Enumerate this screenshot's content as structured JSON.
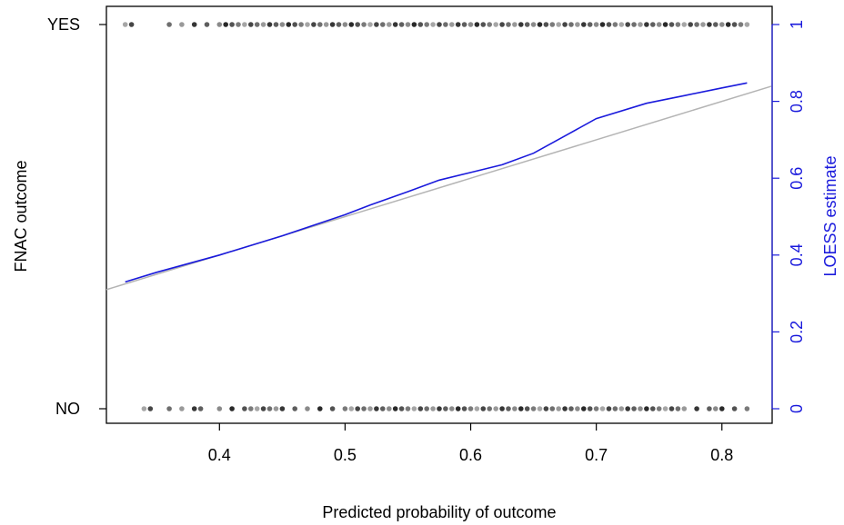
{
  "chart_data": {
    "type": "scatter",
    "xlabel": "Predicted probability of outcome",
    "ylabel": "FNAC outcome",
    "y2label": "LOESS estimate",
    "xlim": [
      0.31,
      0.84
    ],
    "x_ticks": [
      0.4,
      0.5,
      0.6,
      0.7,
      0.8
    ],
    "x_tick_labels": [
      "0.4",
      "0.5",
      "0.6",
      "0.7",
      "0.8"
    ],
    "y_ticks": [
      0,
      1
    ],
    "y_tick_labels": [
      "NO",
      "YES"
    ],
    "y2lim": [
      0,
      1
    ],
    "y2_ticks": [
      0,
      0.2,
      0.4,
      0.6,
      0.8,
      1
    ],
    "y2_tick_labels": [
      "0",
      "0.2",
      "0.4",
      "0.6",
      "0.8",
      "1"
    ],
    "grid": false,
    "colors": {
      "points": "#000000",
      "loess": "#1a1adc",
      "reference": "#b4b4b4",
      "right_axis": "#1a1adc"
    },
    "yes_points_x": [
      0.325,
      0.33,
      0.36,
      0.37,
      0.38,
      0.39,
      0.4,
      0.405,
      0.41,
      0.415,
      0.42,
      0.425,
      0.43,
      0.435,
      0.44,
      0.445,
      0.45,
      0.455,
      0.46,
      0.465,
      0.47,
      0.475,
      0.48,
      0.485,
      0.49,
      0.495,
      0.5,
      0.505,
      0.51,
      0.515,
      0.52,
      0.525,
      0.53,
      0.535,
      0.54,
      0.545,
      0.55,
      0.555,
      0.56,
      0.565,
      0.57,
      0.575,
      0.58,
      0.585,
      0.59,
      0.595,
      0.6,
      0.605,
      0.61,
      0.615,
      0.62,
      0.625,
      0.63,
      0.635,
      0.64,
      0.645,
      0.65,
      0.655,
      0.66,
      0.665,
      0.67,
      0.675,
      0.68,
      0.685,
      0.69,
      0.695,
      0.7,
      0.705,
      0.71,
      0.715,
      0.72,
      0.725,
      0.73,
      0.735,
      0.74,
      0.745,
      0.75,
      0.755,
      0.76,
      0.765,
      0.77,
      0.775,
      0.78,
      0.785,
      0.79,
      0.795,
      0.8,
      0.805,
      0.81,
      0.815,
      0.82
    ],
    "no_points_x": [
      0.34,
      0.345,
      0.36,
      0.37,
      0.38,
      0.385,
      0.4,
      0.41,
      0.42,
      0.425,
      0.43,
      0.435,
      0.44,
      0.445,
      0.45,
      0.46,
      0.47,
      0.48,
      0.49,
      0.5,
      0.505,
      0.51,
      0.515,
      0.52,
      0.525,
      0.53,
      0.535,
      0.54,
      0.545,
      0.55,
      0.555,
      0.56,
      0.565,
      0.57,
      0.575,
      0.58,
      0.585,
      0.59,
      0.595,
      0.6,
      0.605,
      0.61,
      0.615,
      0.62,
      0.625,
      0.63,
      0.635,
      0.64,
      0.645,
      0.65,
      0.655,
      0.66,
      0.665,
      0.67,
      0.675,
      0.68,
      0.685,
      0.69,
      0.695,
      0.7,
      0.705,
      0.71,
      0.715,
      0.72,
      0.725,
      0.73,
      0.735,
      0.74,
      0.745,
      0.75,
      0.755,
      0.76,
      0.765,
      0.77,
      0.78,
      0.79,
      0.795,
      0.8,
      0.81,
      0.82
    ],
    "loess": {
      "x": [
        0.325,
        0.35,
        0.4,
        0.45,
        0.5,
        0.52,
        0.55,
        0.575,
        0.6,
        0.625,
        0.65,
        0.675,
        0.7,
        0.74,
        0.77,
        0.8,
        0.82
      ],
      "y": [
        0.33,
        0.355,
        0.4,
        0.45,
        0.505,
        0.53,
        0.565,
        0.595,
        0.615,
        0.635,
        0.665,
        0.71,
        0.755,
        0.795,
        0.815,
        0.835,
        0.848
      ]
    },
    "reference_line": {
      "x": [
        0.31,
        0.84
      ],
      "y": [
        0.31,
        0.84
      ]
    }
  }
}
